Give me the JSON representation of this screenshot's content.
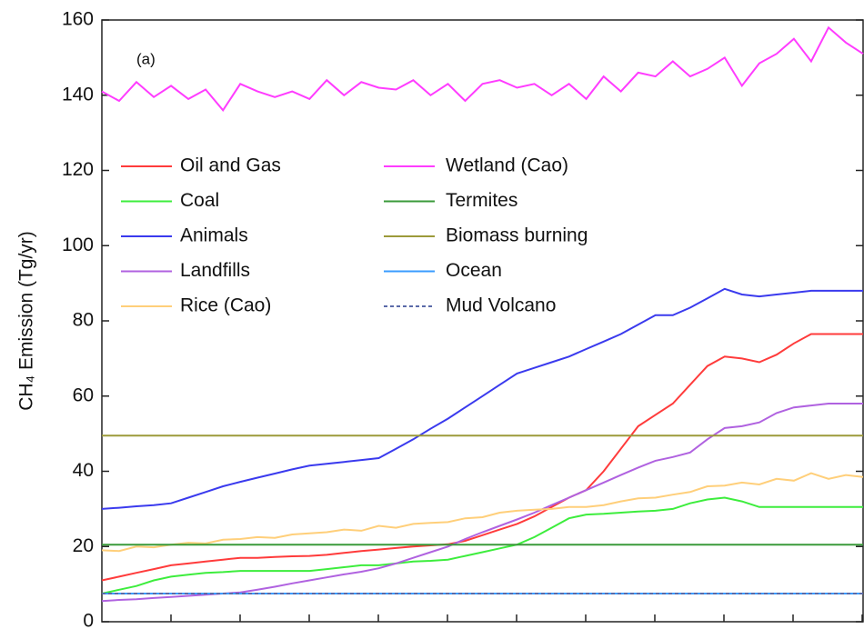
{
  "chart_data": {
    "type": "line",
    "y_label": "CH₄ Emission (Tg/yr)",
    "annotation": "(a)",
    "ylim": [
      0,
      160
    ],
    "yticks": [
      0,
      20,
      40,
      60,
      80,
      100,
      120,
      140,
      160
    ],
    "categories": [
      null,
      null,
      null,
      null,
      null,
      null,
      null,
      null,
      null,
      null,
      null,
      null,
      null,
      null,
      null,
      null,
      null,
      null,
      null,
      null,
      null,
      null,
      null,
      null,
      null,
      null,
      null,
      null,
      null,
      null,
      null,
      null,
      null,
      null,
      null,
      null,
      null,
      null,
      null,
      null,
      null,
      null,
      null,
      null,
      null
    ],
    "legend": "upper left",
    "series": [
      {
        "name": "Oil and Gas",
        "color": "#ff3b3b",
        "values": [
          11,
          12,
          13,
          14,
          15,
          15.5,
          16,
          16.5,
          17,
          17,
          17.2,
          17.4,
          17.5,
          17.8,
          18.3,
          18.8,
          19.2,
          19.6,
          20,
          20.3,
          20.6,
          21.5,
          23,
          24.5,
          26,
          28,
          30.5,
          33,
          35,
          40,
          46,
          52,
          55,
          58,
          63,
          68,
          70.5,
          70,
          69,
          71,
          74,
          76.5,
          76.5,
          76.5,
          76.5
        ]
      },
      {
        "name": "Coal",
        "color": "#3ded3d",
        "values": [
          7.5,
          8.5,
          9.5,
          11,
          12,
          12.5,
          13,
          13.2,
          13.5,
          13.5,
          13.5,
          13.5,
          13.5,
          14,
          14.5,
          15,
          15,
          15.5,
          16,
          16.2,
          16.5,
          17.5,
          18.5,
          19.5,
          20.5,
          22.5,
          25,
          27.5,
          28.5,
          28.7,
          29,
          29.3,
          29.5,
          30,
          31.5,
          32.5,
          33,
          32,
          30.5,
          30.5,
          30.5,
          30.5,
          30.5,
          30.5,
          30.5
        ]
      },
      {
        "name": "Animals",
        "color": "#3a3aee",
        "values": [
          30,
          30.3,
          30.7,
          31,
          31.5,
          33,
          34.5,
          36,
          37.2,
          38.3,
          39.4,
          40.5,
          41.5,
          42,
          42.5,
          43,
          43.5,
          46,
          48.5,
          51.3,
          54,
          57,
          60,
          63,
          66,
          67.5,
          69,
          70.5,
          72.5,
          74.5,
          76.5,
          79,
          81.5,
          81.5,
          83.5,
          86,
          88.5,
          87,
          86.5,
          87,
          87.5,
          88,
          88,
          88,
          88
        ]
      },
      {
        "name": "Landfills",
        "color": "#b062e0",
        "values": [
          5.5,
          5.8,
          6,
          6.3,
          6.6,
          6.9,
          7.2,
          7.5,
          7.8,
          8.5,
          9.3,
          10.2,
          11,
          11.8,
          12.6,
          13.3,
          14.2,
          15.5,
          17,
          18.5,
          20,
          22,
          23.8,
          25.5,
          27.2,
          29,
          31,
          33,
          35,
          37,
          39,
          41,
          42.8,
          43.8,
          45,
          48.5,
          51.5,
          52,
          53,
          55.5,
          57,
          57.5,
          58,
          58,
          58
        ]
      },
      {
        "name": "Rice (Cao)",
        "color": "#ffcf7a",
        "values": [
          19,
          18.8,
          20,
          19.8,
          20.5,
          21,
          20.8,
          21.8,
          22,
          22.5,
          22.3,
          23.2,
          23.5,
          23.8,
          24.5,
          24.2,
          25.5,
          25,
          26,
          26.3,
          26.5,
          27.5,
          27.8,
          29,
          29.5,
          29.8,
          30,
          30.5,
          30.5,
          31,
          32,
          32.8,
          33,
          33.8,
          34.5,
          36,
          36.2,
          37,
          36.5,
          38,
          37.5,
          39.5,
          38,
          39,
          38.5
        ]
      },
      {
        "name": "Wetland (Cao)",
        "color": "#ff3cff",
        "values": [
          141,
          138.5,
          143.5,
          139.5,
          142.5,
          139,
          141.5,
          136,
          143,
          141,
          139.5,
          141,
          139,
          144,
          140,
          143.5,
          142,
          141.5,
          144,
          140,
          143,
          138.5,
          143,
          144,
          142,
          143,
          140,
          143,
          139,
          145,
          141,
          146,
          145,
          149,
          145,
          147,
          150,
          142.5,
          148.5,
          151,
          155,
          149,
          158,
          154,
          151
        ]
      },
      {
        "name": "Termites",
        "color": "#3a9a3a",
        "values": [
          20.5,
          20.5,
          20.5,
          20.5,
          20.5,
          20.5,
          20.5,
          20.5,
          20.5,
          20.5,
          20.5,
          20.5,
          20.5,
          20.5,
          20.5,
          20.5,
          20.5,
          20.5,
          20.5,
          20.5,
          20.5,
          20.5,
          20.5,
          20.5,
          20.5,
          20.5,
          20.5,
          20.5,
          20.5,
          20.5,
          20.5,
          20.5,
          20.5,
          20.5,
          20.5,
          20.5,
          20.5,
          20.5,
          20.5,
          20.5,
          20.5,
          20.5,
          20.5,
          20.5,
          20.5
        ]
      },
      {
        "name": "Biomass burning",
        "color": "#9c9a3a",
        "values": [
          49.5,
          49.5,
          49.5,
          49.5,
          49.5,
          49.5,
          49.5,
          49.5,
          49.5,
          49.5,
          49.5,
          49.5,
          49.5,
          49.5,
          49.5,
          49.5,
          49.5,
          49.5,
          49.5,
          49.5,
          49.5,
          49.5,
          49.5,
          49.5,
          49.5,
          49.5,
          49.5,
          49.5,
          49.5,
          49.5,
          49.5,
          49.5,
          49.5,
          49.5,
          49.5,
          49.5,
          49.5,
          49.5,
          49.5,
          49.5,
          49.5,
          49.5,
          49.5,
          49.5,
          49.5
        ]
      },
      {
        "name": "Ocean",
        "color": "#3a9cff",
        "values": [
          7.5,
          7.5,
          7.5,
          7.5,
          7.5,
          7.5,
          7.5,
          7.5,
          7.5,
          7.5,
          7.5,
          7.5,
          7.5,
          7.5,
          7.5,
          7.5,
          7.5,
          7.5,
          7.5,
          7.5,
          7.5,
          7.5,
          7.5,
          7.5,
          7.5,
          7.5,
          7.5,
          7.5,
          7.5,
          7.5,
          7.5,
          7.5,
          7.5,
          7.5,
          7.5,
          7.5,
          7.5,
          7.5,
          7.5,
          7.5,
          7.5,
          7.5,
          7.5,
          7.5,
          7.5
        ]
      },
      {
        "name": "Mud Volcano",
        "color": "#5a6aa8",
        "dashed": true,
        "values": [
          7.5,
          7.5,
          7.5,
          7.5,
          7.5,
          7.5,
          7.5,
          7.5,
          7.5,
          7.5,
          7.5,
          7.5,
          7.5,
          7.5,
          7.5,
          7.5,
          7.5,
          7.5,
          7.5,
          7.5,
          7.5,
          7.5,
          7.5,
          7.5,
          7.5,
          7.5,
          7.5,
          7.5,
          7.5,
          7.5,
          7.5,
          7.5,
          7.5,
          7.5,
          7.5,
          7.5,
          7.5,
          7.5,
          7.5,
          7.5,
          7.5,
          7.5,
          7.5,
          7.5,
          7.5
        ]
      }
    ]
  }
}
